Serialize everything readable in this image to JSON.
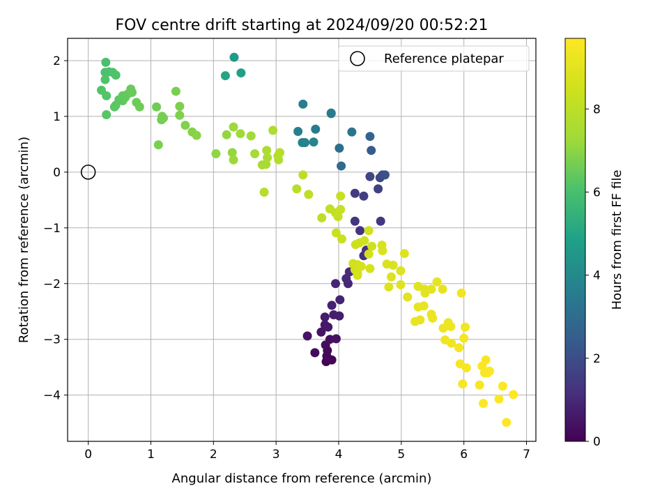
{
  "chart_data": {
    "type": "scatter",
    "title": "FOV centre drift starting at 2024/09/20 00:52:21",
    "xlabel": "Angular distance from reference (arcmin)",
    "ylabel": "Rotation from reference (arcmin)",
    "xlim": [
      -0.33,
      7.15
    ],
    "ylim": [
      -4.83,
      2.4
    ],
    "xticks": [
      0,
      1,
      2,
      3,
      4,
      5,
      6,
      7
    ],
    "yticks": [
      -4,
      -3,
      -2,
      -1,
      0,
      1,
      2
    ],
    "grid": true,
    "legend": {
      "position": "top-right",
      "entries": [
        "Reference platepar"
      ]
    },
    "reference_point": {
      "x": 0,
      "y": 0,
      "label": "Reference platepar"
    },
    "colorbar": {
      "label": "Hours from first FF file",
      "range": [
        0,
        9.7
      ],
      "ticks": [
        0,
        2,
        4,
        6,
        8
      ],
      "colormap": "viridis"
    },
    "points": [
      {
        "x": 3.8,
        "y": -3.4,
        "c": 0.05
      },
      {
        "x": 3.89,
        "y": -3.37,
        "c": 0.1
      },
      {
        "x": 3.81,
        "y": -3.3,
        "c": 0.15
      },
      {
        "x": 3.82,
        "y": -3.2,
        "c": 0.2
      },
      {
        "x": 3.62,
        "y": -3.24,
        "c": 0.25
      },
      {
        "x": 3.79,
        "y": -3.1,
        "c": 0.3
      },
      {
        "x": 3.86,
        "y": -3.0,
        "c": 0.35
      },
      {
        "x": 3.96,
        "y": -2.99,
        "c": 0.4
      },
      {
        "x": 3.5,
        "y": -2.94,
        "c": 0.45
      },
      {
        "x": 3.72,
        "y": -2.87,
        "c": 0.5
      },
      {
        "x": 3.78,
        "y": -2.74,
        "c": 0.55
      },
      {
        "x": 3.83,
        "y": -2.78,
        "c": 0.6
      },
      {
        "x": 3.78,
        "y": -2.6,
        "c": 0.65
      },
      {
        "x": 3.92,
        "y": -2.56,
        "c": 0.7
      },
      {
        "x": 4.01,
        "y": -2.58,
        "c": 0.75
      },
      {
        "x": 3.89,
        "y": -2.39,
        "c": 0.8
      },
      {
        "x": 4.02,
        "y": -2.29,
        "c": 0.85
      },
      {
        "x": 3.95,
        "y": -2.0,
        "c": 0.9
      },
      {
        "x": 4.15,
        "y": -2.0,
        "c": 0.95
      },
      {
        "x": 4.12,
        "y": -1.91,
        "c": 1.0
      },
      {
        "x": 4.17,
        "y": -1.79,
        "c": 1.05
      },
      {
        "x": 4.25,
        "y": -1.75,
        "c": 1.1
      },
      {
        "x": 4.4,
        "y": -1.5,
        "c": 1.15
      },
      {
        "x": 4.44,
        "y": -1.4,
        "c": 1.2
      },
      {
        "x": 4.34,
        "y": -1.05,
        "c": 1.25
      },
      {
        "x": 4.26,
        "y": -0.88,
        "c": 1.3
      },
      {
        "x": 4.67,
        "y": -0.88,
        "c": 1.35
      },
      {
        "x": 4.26,
        "y": -0.38,
        "c": 1.45
      },
      {
        "x": 4.4,
        "y": -0.43,
        "c": 1.55
      },
      {
        "x": 4.63,
        "y": -0.3,
        "c": 1.65
      },
      {
        "x": 4.5,
        "y": -0.08,
        "c": 1.75
      },
      {
        "x": 4.66,
        "y": -0.1,
        "c": 1.85
      },
      {
        "x": 4.7,
        "y": -0.05,
        "c": 1.95
      },
      {
        "x": 4.74,
        "y": -0.05,
        "c": 2.05
      },
      {
        "x": 4.52,
        "y": 0.39,
        "c": 2.4
      },
      {
        "x": 4.5,
        "y": 0.64,
        "c": 2.7
      },
      {
        "x": 4.04,
        "y": 0.11,
        "c": 2.95
      },
      {
        "x": 4.01,
        "y": 0.43,
        "c": 3.1
      },
      {
        "x": 4.21,
        "y": 0.72,
        "c": 3.25
      },
      {
        "x": 3.88,
        "y": 1.06,
        "c": 3.4
      },
      {
        "x": 3.88,
        "y": 1.05,
        "c": 3.45
      },
      {
        "x": 3.63,
        "y": 0.77,
        "c": 3.5
      },
      {
        "x": 3.43,
        "y": 1.22,
        "c": 3.6
      },
      {
        "x": 3.35,
        "y": 0.73,
        "c": 3.65
      },
      {
        "x": 3.42,
        "y": 0.53,
        "c": 3.7
      },
      {
        "x": 3.46,
        "y": 0.53,
        "c": 3.75
      },
      {
        "x": 3.6,
        "y": 0.54,
        "c": 3.8
      },
      {
        "x": 2.33,
        "y": 2.06,
        "c": 4.6
      },
      {
        "x": 2.44,
        "y": 1.78,
        "c": 4.8
      },
      {
        "x": 2.19,
        "y": 1.73,
        "c": 5.0
      },
      {
        "x": 0.28,
        "y": 1.97,
        "c": 6.0
      },
      {
        "x": 0.27,
        "y": 1.79,
        "c": 6.03
      },
      {
        "x": 0.33,
        "y": 1.8,
        "c": 6.06
      },
      {
        "x": 0.39,
        "y": 1.79,
        "c": 6.09
      },
      {
        "x": 0.44,
        "y": 1.74,
        "c": 6.12
      },
      {
        "x": 0.27,
        "y": 1.66,
        "c": 6.15
      },
      {
        "x": 0.21,
        "y": 1.47,
        "c": 6.18
      },
      {
        "x": 0.29,
        "y": 1.37,
        "c": 6.21
      },
      {
        "x": 0.29,
        "y": 1.03,
        "c": 6.24
      },
      {
        "x": 0.42,
        "y": 1.17,
        "c": 6.27
      },
      {
        "x": 0.44,
        "y": 1.2,
        "c": 6.3
      },
      {
        "x": 0.49,
        "y": 1.3,
        "c": 6.33
      },
      {
        "x": 0.55,
        "y": 1.28,
        "c": 6.36
      },
      {
        "x": 0.55,
        "y": 1.37,
        "c": 6.39
      },
      {
        "x": 0.59,
        "y": 1.34,
        "c": 6.42
      },
      {
        "x": 0.63,
        "y": 1.4,
        "c": 6.45
      },
      {
        "x": 0.68,
        "y": 1.49,
        "c": 6.48
      },
      {
        "x": 0.7,
        "y": 1.43,
        "c": 6.51
      },
      {
        "x": 0.77,
        "y": 1.25,
        "c": 6.54
      },
      {
        "x": 0.82,
        "y": 1.17,
        "c": 6.57
      },
      {
        "x": 1.09,
        "y": 1.17,
        "c": 6.6
      },
      {
        "x": 1.17,
        "y": 0.94,
        "c": 6.63
      },
      {
        "x": 1.2,
        "y": 0.97,
        "c": 6.66
      },
      {
        "x": 1.18,
        "y": 1.0,
        "c": 6.69
      },
      {
        "x": 1.12,
        "y": 0.49,
        "c": 6.72
      },
      {
        "x": 1.4,
        "y": 1.45,
        "c": 6.75
      },
      {
        "x": 1.46,
        "y": 1.18,
        "c": 6.78
      },
      {
        "x": 1.46,
        "y": 1.02,
        "c": 6.81
      },
      {
        "x": 1.55,
        "y": 0.84,
        "c": 6.84
      },
      {
        "x": 1.66,
        "y": 0.72,
        "c": 6.9
      },
      {
        "x": 1.73,
        "y": 0.66,
        "c": 6.95
      },
      {
        "x": 2.04,
        "y": 0.33,
        "c": 7.05
      },
      {
        "x": 2.21,
        "y": 0.67,
        "c": 7.1
      },
      {
        "x": 2.3,
        "y": 0.35,
        "c": 7.15
      },
      {
        "x": 2.32,
        "y": 0.22,
        "c": 7.2
      },
      {
        "x": 2.32,
        "y": 0.81,
        "c": 7.25
      },
      {
        "x": 2.43,
        "y": 0.69,
        "c": 7.3
      },
      {
        "x": 2.6,
        "y": 0.65,
        "c": 7.35
      },
      {
        "x": 2.66,
        "y": 0.33,
        "c": 7.4
      },
      {
        "x": 2.78,
        "y": 0.13,
        "c": 7.45
      },
      {
        "x": 2.84,
        "y": 0.14,
        "c": 7.5
      },
      {
        "x": 2.86,
        "y": 0.26,
        "c": 7.55
      },
      {
        "x": 2.85,
        "y": 0.39,
        "c": 7.6
      },
      {
        "x": 2.95,
        "y": 0.75,
        "c": 7.65
      },
      {
        "x": 3.03,
        "y": 0.29,
        "c": 7.7
      },
      {
        "x": 3.04,
        "y": 0.22,
        "c": 7.75
      },
      {
        "x": 3.06,
        "y": 0.35,
        "c": 7.8
      },
      {
        "x": 2.81,
        "y": -0.36,
        "c": 7.85
      },
      {
        "x": 3.33,
        "y": -0.3,
        "c": 7.9
      },
      {
        "x": 3.43,
        "y": -0.05,
        "c": 7.95
      },
      {
        "x": 3.52,
        "y": -0.4,
        "c": 8.0
      },
      {
        "x": 3.73,
        "y": -0.82,
        "c": 8.05
      },
      {
        "x": 3.86,
        "y": -0.66,
        "c": 8.1
      },
      {
        "x": 3.95,
        "y": -0.73,
        "c": 8.15
      },
      {
        "x": 3.99,
        "y": -0.8,
        "c": 8.2
      },
      {
        "x": 4.03,
        "y": -0.67,
        "c": 8.25
      },
      {
        "x": 4.03,
        "y": -0.43,
        "c": 8.3
      },
      {
        "x": 3.96,
        "y": -1.09,
        "c": 8.32
      },
      {
        "x": 4.05,
        "y": -1.2,
        "c": 8.35
      },
      {
        "x": 4.27,
        "y": -1.3,
        "c": 8.37
      },
      {
        "x": 4.33,
        "y": -1.27,
        "c": 8.4
      },
      {
        "x": 4.41,
        "y": -1.23,
        "c": 8.42
      },
      {
        "x": 4.48,
        "y": -1.05,
        "c": 8.45
      },
      {
        "x": 4.53,
        "y": -1.33,
        "c": 8.47
      },
      {
        "x": 4.48,
        "y": -1.47,
        "c": 8.5
      },
      {
        "x": 4.23,
        "y": -1.64,
        "c": 8.52
      },
      {
        "x": 4.3,
        "y": -1.66,
        "c": 8.55
      },
      {
        "x": 4.26,
        "y": -1.75,
        "c": 8.57
      },
      {
        "x": 4.3,
        "y": -1.81,
        "c": 8.6
      },
      {
        "x": 4.3,
        "y": -1.85,
        "c": 8.62
      },
      {
        "x": 4.36,
        "y": -1.69,
        "c": 8.65
      },
      {
        "x": 4.5,
        "y": -1.73,
        "c": 8.67
      },
      {
        "x": 4.69,
        "y": -1.31,
        "c": 8.7
      },
      {
        "x": 4.7,
        "y": -1.41,
        "c": 8.72
      },
      {
        "x": 4.77,
        "y": -1.65,
        "c": 8.75
      },
      {
        "x": 4.87,
        "y": -1.67,
        "c": 8.77
      },
      {
        "x": 4.84,
        "y": -1.88,
        "c": 8.8
      },
      {
        "x": 4.8,
        "y": -2.06,
        "c": 8.82
      },
      {
        "x": 4.99,
        "y": -1.77,
        "c": 8.85
      },
      {
        "x": 5.05,
        "y": -1.46,
        "c": 8.87
      },
      {
        "x": 4.99,
        "y": -2.02,
        "c": 8.9
      },
      {
        "x": 5.1,
        "y": -2.24,
        "c": 8.92
      },
      {
        "x": 5.27,
        "y": -2.05,
        "c": 8.95
      },
      {
        "x": 5.37,
        "y": -2.1,
        "c": 8.97
      },
      {
        "x": 5.38,
        "y": -2.17,
        "c": 9.0
      },
      {
        "x": 5.48,
        "y": -2.1,
        "c": 9.02
      },
      {
        "x": 5.57,
        "y": -1.97,
        "c": 9.05
      },
      {
        "x": 5.66,
        "y": -2.1,
        "c": 9.07
      },
      {
        "x": 5.27,
        "y": -2.42,
        "c": 9.1
      },
      {
        "x": 5.36,
        "y": -2.4,
        "c": 9.12
      },
      {
        "x": 5.22,
        "y": -2.68,
        "c": 9.15
      },
      {
        "x": 5.3,
        "y": -2.65,
        "c": 9.17
      },
      {
        "x": 5.48,
        "y": -2.55,
        "c": 9.2
      },
      {
        "x": 5.5,
        "y": -2.62,
        "c": 9.22
      },
      {
        "x": 5.67,
        "y": -2.8,
        "c": 9.25
      },
      {
        "x": 5.75,
        "y": -2.7,
        "c": 9.27
      },
      {
        "x": 5.79,
        "y": -2.77,
        "c": 9.3
      },
      {
        "x": 5.7,
        "y": -3.01,
        "c": 9.32
      },
      {
        "x": 5.8,
        "y": -3.07,
        "c": 9.35
      },
      {
        "x": 5.96,
        "y": -2.17,
        "c": 9.37
      },
      {
        "x": 6.02,
        "y": -2.78,
        "c": 9.4
      },
      {
        "x": 6.0,
        "y": -2.98,
        "c": 9.42
      },
      {
        "x": 5.92,
        "y": -3.15,
        "c": 9.45
      },
      {
        "x": 5.94,
        "y": -3.44,
        "c": 9.47
      },
      {
        "x": 6.04,
        "y": -3.51,
        "c": 9.5
      },
      {
        "x": 5.98,
        "y": -3.8,
        "c": 9.52
      },
      {
        "x": 6.25,
        "y": -3.82,
        "c": 9.55
      },
      {
        "x": 6.35,
        "y": -3.37,
        "c": 9.57
      },
      {
        "x": 6.29,
        "y": -3.48,
        "c": 9.6
      },
      {
        "x": 6.33,
        "y": -3.6,
        "c": 9.62
      },
      {
        "x": 6.38,
        "y": -3.6,
        "c": 9.63
      },
      {
        "x": 6.41,
        "y": -3.57,
        "c": 9.64
      },
      {
        "x": 6.31,
        "y": -4.15,
        "c": 9.65
      },
      {
        "x": 6.56,
        "y": -4.07,
        "c": 9.66
      },
      {
        "x": 6.62,
        "y": -3.84,
        "c": 9.67
      },
      {
        "x": 6.79,
        "y": -3.99,
        "c": 9.68
      },
      {
        "x": 6.68,
        "y": -4.49,
        "c": 9.7
      }
    ]
  }
}
